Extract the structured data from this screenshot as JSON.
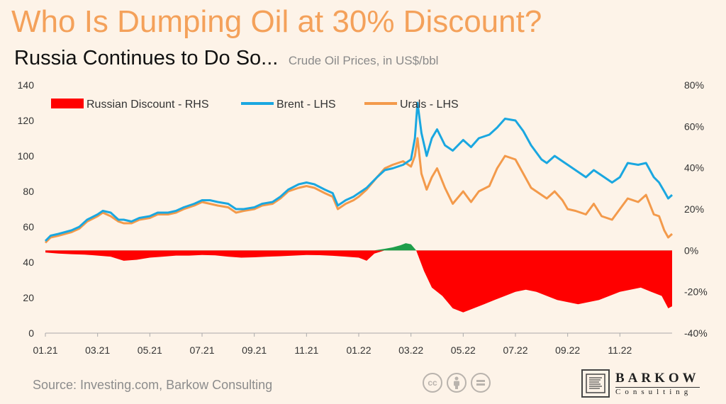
{
  "header": {
    "title": "Who Is Dumping Oil at 30% Discount?",
    "subtitle": "Russia Continues to Do So...",
    "note": "Crude Oil Prices, in US$/bbl"
  },
  "footer": {
    "source": "Source: Investing.com, Barkow Consulting",
    "logo_name": "BARKOW",
    "logo_sub": "Consulting",
    "license_icons": [
      "cc-icon",
      "by-icon",
      "nd-icon"
    ]
  },
  "colors": {
    "brent": "#1aa7e0",
    "urals": "#f39a4b",
    "discount_negative": "#ff0000",
    "discount_positive": "#1e9e4a",
    "title": "#f4a15a",
    "background": "#fdf3e8"
  },
  "chart_data": {
    "type": "line",
    "legend": [
      {
        "label": "Russian Discount - RHS",
        "marker": "bar"
      },
      {
        "label": "Brent - LHS",
        "marker": "line"
      },
      {
        "label": "Urals - LHS",
        "marker": "line"
      }
    ],
    "legend_position": "top-left",
    "x_ticks": [
      "01.21",
      "03.21",
      "05.21",
      "07.21",
      "09.21",
      "11.21",
      "01.22",
      "03.22",
      "05.22",
      "07.22",
      "09.22",
      "11.22"
    ],
    "y_left": {
      "ticks": [
        "0",
        "20",
        "40",
        "60",
        "80",
        "100",
        "120",
        "140"
      ],
      "range": [
        0,
        140
      ]
    },
    "y_right": {
      "ticks": [
        "-40%",
        "-20%",
        "0%",
        "20%",
        "40%",
        "60%",
        "80%"
      ],
      "range": [
        -40,
        80
      ]
    },
    "time_range": [
      0,
      24
    ],
    "grid": false,
    "series": [
      {
        "name": "Brent - LHS",
        "axis": "left",
        "points": [
          [
            0.0,
            52
          ],
          [
            0.2,
            55
          ],
          [
            0.5,
            56
          ],
          [
            1.0,
            58
          ],
          [
            1.3,
            60
          ],
          [
            1.6,
            64
          ],
          [
            2.0,
            67
          ],
          [
            2.2,
            69
          ],
          [
            2.5,
            68
          ],
          [
            2.8,
            64
          ],
          [
            3.0,
            64
          ],
          [
            3.3,
            63
          ],
          [
            3.6,
            65
          ],
          [
            4.0,
            66
          ],
          [
            4.3,
            68
          ],
          [
            4.7,
            68
          ],
          [
            5.0,
            69
          ],
          [
            5.3,
            71
          ],
          [
            5.7,
            73
          ],
          [
            6.0,
            75
          ],
          [
            6.3,
            75
          ],
          [
            6.6,
            74
          ],
          [
            7.0,
            73
          ],
          [
            7.3,
            70
          ],
          [
            7.6,
            70
          ],
          [
            8.0,
            71
          ],
          [
            8.3,
            73
          ],
          [
            8.7,
            74
          ],
          [
            9.0,
            77
          ],
          [
            9.3,
            81
          ],
          [
            9.7,
            84
          ],
          [
            10.0,
            85
          ],
          [
            10.3,
            84
          ],
          [
            10.7,
            81
          ],
          [
            11.0,
            79
          ],
          [
            11.2,
            72
          ],
          [
            11.5,
            75
          ],
          [
            11.8,
            77
          ],
          [
            12.0,
            79
          ],
          [
            12.3,
            82
          ],
          [
            12.7,
            88
          ],
          [
            13.0,
            92
          ],
          [
            13.3,
            93
          ],
          [
            13.7,
            95
          ],
          [
            14.0,
            98
          ],
          [
            14.15,
            110
          ],
          [
            14.25,
            130
          ],
          [
            14.4,
            113
          ],
          [
            14.6,
            100
          ],
          [
            14.8,
            110
          ],
          [
            15.0,
            115
          ],
          [
            15.3,
            106
          ],
          [
            15.6,
            103
          ],
          [
            16.0,
            109
          ],
          [
            16.3,
            105
          ],
          [
            16.6,
            110
          ],
          [
            17.0,
            112
          ],
          [
            17.3,
            116
          ],
          [
            17.6,
            121
          ],
          [
            18.0,
            120
          ],
          [
            18.3,
            114
          ],
          [
            18.6,
            106
          ],
          [
            19.0,
            98
          ],
          [
            19.2,
            96
          ],
          [
            19.5,
            100
          ],
          [
            19.8,
            97
          ],
          [
            20.0,
            95
          ],
          [
            20.3,
            92
          ],
          [
            20.7,
            88
          ],
          [
            21.0,
            92
          ],
          [
            21.3,
            89
          ],
          [
            21.7,
            85
          ],
          [
            22.0,
            88
          ],
          [
            22.3,
            96
          ],
          [
            22.7,
            95
          ],
          [
            23.0,
            96
          ],
          [
            23.3,
            88
          ],
          [
            23.5,
            85
          ],
          [
            23.7,
            80
          ],
          [
            23.85,
            76
          ],
          [
            24.0,
            78
          ]
        ]
      },
      {
        "name": "Urals - LHS",
        "axis": "left",
        "points": [
          [
            0.0,
            51
          ],
          [
            0.2,
            54
          ],
          [
            0.5,
            55
          ],
          [
            1.0,
            57
          ],
          [
            1.3,
            59
          ],
          [
            1.6,
            63
          ],
          [
            2.0,
            66
          ],
          [
            2.2,
            68
          ],
          [
            2.5,
            66
          ],
          [
            2.8,
            63
          ],
          [
            3.0,
            62
          ],
          [
            3.3,
            62
          ],
          [
            3.6,
            64
          ],
          [
            4.0,
            65
          ],
          [
            4.3,
            67
          ],
          [
            4.7,
            67
          ],
          [
            5.0,
            68
          ],
          [
            5.3,
            70
          ],
          [
            5.7,
            72
          ],
          [
            6.0,
            74
          ],
          [
            6.3,
            73
          ],
          [
            6.6,
            72
          ],
          [
            7.0,
            71
          ],
          [
            7.3,
            68
          ],
          [
            7.6,
            69
          ],
          [
            8.0,
            70
          ],
          [
            8.3,
            72
          ],
          [
            8.7,
            73
          ],
          [
            9.0,
            76
          ],
          [
            9.3,
            80
          ],
          [
            9.7,
            82
          ],
          [
            10.0,
            83
          ],
          [
            10.3,
            82
          ],
          [
            10.7,
            79
          ],
          [
            11.0,
            77
          ],
          [
            11.2,
            70
          ],
          [
            11.5,
            73
          ],
          [
            11.8,
            75
          ],
          [
            12.0,
            77
          ],
          [
            12.3,
            81
          ],
          [
            12.7,
            88
          ],
          [
            13.0,
            93
          ],
          [
            13.3,
            95
          ],
          [
            13.7,
            97
          ],
          [
            14.0,
            94
          ],
          [
            14.15,
            100
          ],
          [
            14.25,
            110
          ],
          [
            14.4,
            90
          ],
          [
            14.6,
            81
          ],
          [
            14.8,
            88
          ],
          [
            15.0,
            93
          ],
          [
            15.3,
            82
          ],
          [
            15.6,
            73
          ],
          [
            16.0,
            80
          ],
          [
            16.3,
            74
          ],
          [
            16.6,
            80
          ],
          [
            17.0,
            83
          ],
          [
            17.3,
            93
          ],
          [
            17.6,
            100
          ],
          [
            18.0,
            98
          ],
          [
            18.3,
            90
          ],
          [
            18.6,
            82
          ],
          [
            19.0,
            78
          ],
          [
            19.2,
            76
          ],
          [
            19.5,
            80
          ],
          [
            19.8,
            75
          ],
          [
            20.0,
            70
          ],
          [
            20.3,
            69
          ],
          [
            20.7,
            67
          ],
          [
            21.0,
            73
          ],
          [
            21.3,
            66
          ],
          [
            21.7,
            64
          ],
          [
            22.0,
            70
          ],
          [
            22.3,
            76
          ],
          [
            22.7,
            74
          ],
          [
            23.0,
            78
          ],
          [
            23.3,
            67
          ],
          [
            23.5,
            66
          ],
          [
            23.7,
            58
          ],
          [
            23.85,
            54
          ],
          [
            24.0,
            56
          ]
        ]
      },
      {
        "name": "Russian Discount - RHS",
        "axis": "right",
        "type": "area",
        "points": [
          [
            0.0,
            -1
          ],
          [
            0.5,
            -1.5
          ],
          [
            1.0,
            -1.8
          ],
          [
            1.5,
            -2
          ],
          [
            2.0,
            -2.5
          ],
          [
            2.5,
            -3
          ],
          [
            3.0,
            -5
          ],
          [
            3.5,
            -4.5
          ],
          [
            4.0,
            -3.5
          ],
          [
            4.5,
            -3
          ],
          [
            5.0,
            -2.5
          ],
          [
            5.5,
            -2.5
          ],
          [
            6.0,
            -2.2
          ],
          [
            6.5,
            -2.4
          ],
          [
            7.0,
            -3
          ],
          [
            7.5,
            -3.5
          ],
          [
            8.0,
            -3.3
          ],
          [
            8.5,
            -3
          ],
          [
            9.0,
            -2.8
          ],
          [
            9.5,
            -2.5
          ],
          [
            10.0,
            -2.2
          ],
          [
            10.5,
            -2.3
          ],
          [
            11.0,
            -2.6
          ],
          [
            11.5,
            -3
          ],
          [
            12.0,
            -3.5
          ],
          [
            12.3,
            -5
          ],
          [
            12.6,
            -1.5
          ],
          [
            13.0,
            0.8
          ],
          [
            13.3,
            1.5
          ],
          [
            13.6,
            2.5
          ],
          [
            13.8,
            3.5
          ],
          [
            14.0,
            3
          ],
          [
            14.2,
            0
          ],
          [
            14.5,
            -10
          ],
          [
            14.8,
            -18
          ],
          [
            15.2,
            -22
          ],
          [
            15.6,
            -28
          ],
          [
            16.0,
            -30
          ],
          [
            16.4,
            -28
          ],
          [
            16.8,
            -26
          ],
          [
            17.2,
            -24
          ],
          [
            17.6,
            -22
          ],
          [
            18.0,
            -20
          ],
          [
            18.4,
            -19
          ],
          [
            18.8,
            -20
          ],
          [
            19.2,
            -22
          ],
          [
            19.6,
            -24
          ],
          [
            20.0,
            -25
          ],
          [
            20.4,
            -26
          ],
          [
            20.8,
            -25
          ],
          [
            21.2,
            -24
          ],
          [
            21.6,
            -22
          ],
          [
            22.0,
            -20
          ],
          [
            22.4,
            -19
          ],
          [
            22.8,
            -18
          ],
          [
            23.2,
            -20
          ],
          [
            23.6,
            -22
          ],
          [
            23.85,
            -28
          ],
          [
            24.0,
            -27
          ]
        ]
      }
    ]
  }
}
